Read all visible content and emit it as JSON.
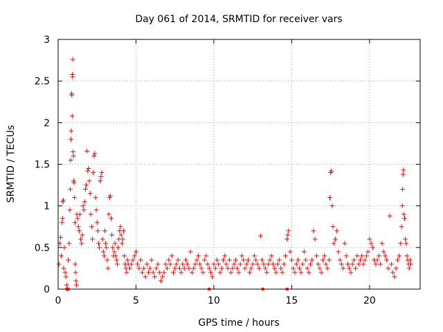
{
  "chart_data": {
    "type": "scatter",
    "title": "Day 061 of 2014, SRMTID for receiver vars",
    "xlabel": "GPS time / hours",
    "ylabel": "SRMTID / TECUs",
    "xlim": [
      0,
      23.25
    ],
    "ylim": [
      0,
      3
    ],
    "x_ticks": [
      0,
      5,
      10,
      15,
      20
    ],
    "y_ticks": [
      0,
      0.5,
      1,
      1.5,
      2,
      2.5,
      3
    ],
    "x_tick_labels": [
      "0",
      "5",
      "10",
      "15",
      "20"
    ],
    "y_tick_labels": [
      "0",
      "0.5",
      "1",
      "1.5",
      "2",
      "2.5",
      "3"
    ],
    "grid": true,
    "marker": "+",
    "marker_color": "#ff0000",
    "series": [
      {
        "name": "SRMTID",
        "points": [
          [
            0.05,
            0.3
          ],
          [
            0.1,
            0.55
          ],
          [
            0.15,
            0.62
          ],
          [
            0.2,
            0.4
          ],
          [
            0.25,
            0.8
          ],
          [
            0.28,
            0.85
          ],
          [
            0.3,
            1.05
          ],
          [
            0.33,
            1.07
          ],
          [
            0.35,
            0.25
          ],
          [
            0.4,
            0.5
          ],
          [
            0.45,
            0.2
          ],
          [
            0.5,
            0.15
          ],
          [
            0.55,
            0.05
          ],
          [
            0.6,
            0.0
          ],
          [
            0.65,
            0.35
          ],
          [
            0.7,
            0.55
          ],
          [
            0.75,
            0.95
          ],
          [
            0.78,
            1.2
          ],
          [
            0.8,
            1.55
          ],
          [
            0.82,
            1.8
          ],
          [
            0.84,
            1.9
          ],
          [
            0.86,
            2.35
          ],
          [
            0.88,
            2.33
          ],
          [
            0.9,
            2.08
          ],
          [
            0.92,
            2.58
          ],
          [
            0.93,
            2.55
          ],
          [
            0.94,
            2.76
          ],
          [
            0.96,
            1.65
          ],
          [
            0.98,
            1.6
          ],
          [
            1.0,
            1.3
          ],
          [
            1.02,
            1.28
          ],
          [
            1.05,
            1.1
          ],
          [
            1.08,
            0.8
          ],
          [
            1.1,
            0.3
          ],
          [
            1.12,
            0.2
          ],
          [
            1.15,
            0.1
          ],
          [
            1.18,
            0.05
          ],
          [
            1.2,
            0.9
          ],
          [
            1.25,
            0.85
          ],
          [
            1.3,
            0.75
          ],
          [
            1.35,
            0.7
          ],
          [
            1.4,
            0.9
          ],
          [
            1.45,
            0.6
          ],
          [
            1.5,
            0.55
          ],
          [
            1.55,
            0.65
          ],
          [
            1.6,
            1.0
          ],
          [
            1.65,
            0.95
          ],
          [
            1.7,
            1.05
          ],
          [
            1.75,
            1.2
          ],
          [
            1.8,
            1.25
          ],
          [
            1.85,
            1.66
          ],
          [
            1.9,
            1.42
          ],
          [
            1.95,
            1.45
          ],
          [
            2.0,
            1.3
          ],
          [
            2.05,
            1.15
          ],
          [
            2.1,
            0.9
          ],
          [
            2.15,
            0.75
          ],
          [
            2.2,
            0.6
          ],
          [
            2.25,
            1.4
          ],
          [
            2.3,
            1.6
          ],
          [
            2.35,
            1.63
          ],
          [
            2.4,
            1.1
          ],
          [
            2.45,
            0.95
          ],
          [
            2.5,
            0.8
          ],
          [
            2.55,
            0.7
          ],
          [
            2.6,
            0.55
          ],
          [
            2.65,
            0.5
          ],
          [
            2.7,
            1.3
          ],
          [
            2.75,
            1.35
          ],
          [
            2.8,
            1.4
          ],
          [
            2.85,
            0.6
          ],
          [
            2.9,
            0.45
          ],
          [
            2.95,
            0.4
          ],
          [
            3.0,
            0.7
          ],
          [
            3.05,
            0.55
          ],
          [
            3.1,
            0.5
          ],
          [
            3.15,
            0.35
          ],
          [
            3.2,
            0.25
          ],
          [
            3.25,
            0.9
          ],
          [
            3.3,
            1.1
          ],
          [
            3.35,
            1.12
          ],
          [
            3.4,
            0.85
          ],
          [
            3.45,
            0.65
          ],
          [
            3.5,
            0.5
          ],
          [
            3.55,
            0.4
          ],
          [
            3.6,
            0.45
          ],
          [
            3.65,
            0.55
          ],
          [
            3.7,
            0.4
          ],
          [
            3.75,
            0.35
          ],
          [
            3.8,
            0.3
          ],
          [
            3.85,
            0.5
          ],
          [
            3.9,
            0.6
          ],
          [
            3.95,
            0.7
          ],
          [
            4.0,
            0.75
          ],
          [
            4.05,
            0.65
          ],
          [
            4.1,
            0.55
          ],
          [
            4.15,
            0.6
          ],
          [
            4.2,
            0.7
          ],
          [
            4.25,
            0.4
          ],
          [
            4.3,
            0.3
          ],
          [
            4.35,
            0.25
          ],
          [
            4.4,
            0.2
          ],
          [
            4.45,
            0.35
          ],
          [
            4.5,
            0.3
          ],
          [
            4.6,
            0.25
          ],
          [
            4.7,
            0.3
          ],
          [
            4.8,
            0.35
          ],
          [
            4.9,
            0.4
          ],
          [
            5.0,
            0.45
          ],
          [
            5.1,
            0.3
          ],
          [
            5.2,
            0.25
          ],
          [
            5.3,
            0.35
          ],
          [
            5.4,
            0.2
          ],
          [
            5.5,
            0.25
          ],
          [
            5.6,
            0.15
          ],
          [
            5.7,
            0.3
          ],
          [
            5.8,
            0.2
          ],
          [
            5.9,
            0.25
          ],
          [
            6.0,
            0.35
          ],
          [
            6.1,
            0.2
          ],
          [
            6.2,
            0.15
          ],
          [
            6.3,
            0.25
          ],
          [
            6.4,
            0.3
          ],
          [
            6.5,
            0.2
          ],
          [
            6.6,
            0.1
          ],
          [
            6.7,
            0.15
          ],
          [
            6.8,
            0.2
          ],
          [
            6.9,
            0.3
          ],
          [
            7.0,
            0.25
          ],
          [
            7.1,
            0.35
          ],
          [
            7.2,
            0.3
          ],
          [
            7.3,
            0.4
          ],
          [
            7.4,
            0.2
          ],
          [
            7.5,
            0.25
          ],
          [
            7.6,
            0.3
          ],
          [
            7.7,
            0.35
          ],
          [
            7.8,
            0.25
          ],
          [
            7.9,
            0.2
          ],
          [
            8.0,
            0.3
          ],
          [
            8.1,
            0.25
          ],
          [
            8.2,
            0.35
          ],
          [
            8.3,
            0.3
          ],
          [
            8.4,
            0.25
          ],
          [
            8.5,
            0.45
          ],
          [
            8.6,
            0.2
          ],
          [
            8.7,
            0.25
          ],
          [
            8.8,
            0.3
          ],
          [
            8.9,
            0.35
          ],
          [
            9.0,
            0.4
          ],
          [
            9.1,
            0.3
          ],
          [
            9.2,
            0.25
          ],
          [
            9.3,
            0.2
          ],
          [
            9.4,
            0.35
          ],
          [
            9.5,
            0.4
          ],
          [
            9.6,
            0.3
          ],
          [
            9.7,
            0.25
          ],
          [
            9.8,
            0.2
          ],
          [
            9.9,
            0.15
          ],
          [
            10.0,
            0.3
          ],
          [
            10.1,
            0.25
          ],
          [
            10.2,
            0.35
          ],
          [
            10.3,
            0.3
          ],
          [
            10.4,
            0.2
          ],
          [
            10.5,
            0.25
          ],
          [
            10.6,
            0.35
          ],
          [
            10.7,
            0.4
          ],
          [
            10.8,
            0.3
          ],
          [
            10.9,
            0.25
          ],
          [
            11.0,
            0.35
          ],
          [
            11.1,
            0.2
          ],
          [
            11.2,
            0.25
          ],
          [
            11.3,
            0.3
          ],
          [
            11.4,
            0.35
          ],
          [
            11.5,
            0.25
          ],
          [
            11.6,
            0.2
          ],
          [
            11.7,
            0.3
          ],
          [
            11.8,
            0.4
          ],
          [
            11.9,
            0.35
          ],
          [
            12.0,
            0.25
          ],
          [
            12.1,
            0.3
          ],
          [
            12.2,
            0.35
          ],
          [
            12.3,
            0.2
          ],
          [
            12.4,
            0.25
          ],
          [
            12.5,
            0.3
          ],
          [
            12.6,
            0.4
          ],
          [
            12.7,
            0.35
          ],
          [
            12.8,
            0.3
          ],
          [
            12.9,
            0.25
          ],
          [
            13.0,
            0.64
          ],
          [
            13.1,
            0.35
          ],
          [
            13.2,
            0.3
          ],
          [
            13.3,
            0.25
          ],
          [
            13.4,
            0.2
          ],
          [
            13.5,
            0.3
          ],
          [
            13.6,
            0.35
          ],
          [
            13.7,
            0.4
          ],
          [
            13.8,
            0.3
          ],
          [
            13.9,
            0.25
          ],
          [
            14.0,
            0.2
          ],
          [
            14.1,
            0.3
          ],
          [
            14.2,
            0.35
          ],
          [
            14.3,
            0.25
          ],
          [
            14.4,
            0.2
          ],
          [
            14.5,
            0.3
          ],
          [
            14.6,
            0.4
          ],
          [
            14.7,
            0.6
          ],
          [
            14.75,
            0.65
          ],
          [
            14.8,
            0.7
          ],
          [
            14.9,
            0.45
          ],
          [
            15.0,
            0.35
          ],
          [
            15.1,
            0.25
          ],
          [
            15.2,
            0.2
          ],
          [
            15.3,
            0.3
          ],
          [
            15.4,
            0.35
          ],
          [
            15.5,
            0.25
          ],
          [
            15.6,
            0.2
          ],
          [
            15.7,
            0.3
          ],
          [
            15.8,
            0.45
          ],
          [
            15.9,
            0.35
          ],
          [
            16.0,
            0.25
          ],
          [
            16.1,
            0.2
          ],
          [
            16.2,
            0.3
          ],
          [
            16.3,
            0.35
          ],
          [
            16.4,
            0.7
          ],
          [
            16.5,
            0.6
          ],
          [
            16.6,
            0.4
          ],
          [
            16.7,
            0.3
          ],
          [
            16.8,
            0.25
          ],
          [
            16.9,
            0.2
          ],
          [
            17.0,
            0.35
          ],
          [
            17.1,
            0.4
          ],
          [
            17.2,
            0.3
          ],
          [
            17.3,
            0.25
          ],
          [
            17.4,
            0.35
          ],
          [
            17.45,
            1.1
          ],
          [
            17.5,
            1.4
          ],
          [
            17.55,
            1.42
          ],
          [
            17.6,
            1.0
          ],
          [
            17.65,
            0.75
          ],
          [
            17.7,
            0.55
          ],
          [
            17.8,
            0.6
          ],
          [
            17.9,
            0.7
          ],
          [
            18.0,
            0.45
          ],
          [
            18.1,
            0.35
          ],
          [
            18.2,
            0.3
          ],
          [
            18.3,
            0.25
          ],
          [
            18.4,
            0.55
          ],
          [
            18.5,
            0.4
          ],
          [
            18.6,
            0.3
          ],
          [
            18.7,
            0.25
          ],
          [
            18.8,
            0.2
          ],
          [
            18.9,
            0.3
          ],
          [
            19.0,
            0.35
          ],
          [
            19.1,
            0.25
          ],
          [
            19.2,
            0.4
          ],
          [
            19.3,
            0.3
          ],
          [
            19.4,
            0.35
          ],
          [
            19.5,
            0.4
          ],
          [
            19.6,
            0.3
          ],
          [
            19.7,
            0.35
          ],
          [
            19.8,
            0.4
          ],
          [
            19.9,
            0.45
          ],
          [
            20.0,
            0.6
          ],
          [
            20.1,
            0.55
          ],
          [
            20.2,
            0.5
          ],
          [
            20.3,
            0.35
          ],
          [
            20.4,
            0.3
          ],
          [
            20.5,
            0.35
          ],
          [
            20.6,
            0.4
          ],
          [
            20.7,
            0.3
          ],
          [
            20.8,
            0.55
          ],
          [
            20.9,
            0.45
          ],
          [
            21.0,
            0.4
          ],
          [
            21.1,
            0.35
          ],
          [
            21.2,
            0.25
          ],
          [
            21.3,
            0.88
          ],
          [
            21.4,
            0.3
          ],
          [
            21.5,
            0.2
          ],
          [
            21.6,
            0.15
          ],
          [
            21.7,
            0.25
          ],
          [
            21.8,
            0.35
          ],
          [
            21.9,
            0.4
          ],
          [
            22.0,
            0.55
          ],
          [
            22.05,
            0.75
          ],
          [
            22.1,
            1.0
          ],
          [
            22.12,
            1.2
          ],
          [
            22.15,
            1.38
          ],
          [
            22.18,
            1.43
          ],
          [
            22.2,
            0.9
          ],
          [
            22.25,
            0.85
          ],
          [
            22.3,
            0.6
          ],
          [
            22.35,
            0.55
          ],
          [
            22.4,
            0.4
          ],
          [
            22.45,
            0.35
          ],
          [
            22.5,
            0.3
          ],
          [
            22.55,
            0.25
          ],
          [
            22.6,
            0.35
          ],
          [
            22.65,
            0.3
          ]
        ]
      }
    ],
    "marker_extras": [
      0.55,
      0.65,
      9.7,
      13.15,
      14.7
    ]
  }
}
